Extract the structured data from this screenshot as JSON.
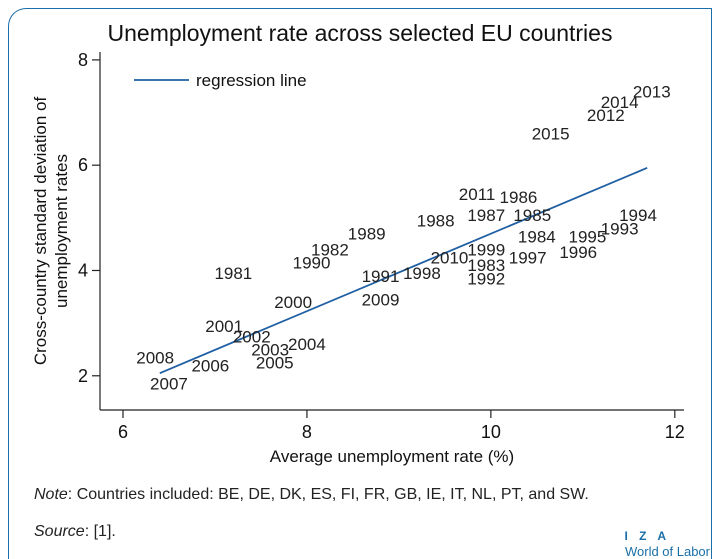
{
  "chart_data": {
    "type": "scatter",
    "title": "Unemployment rate across selected EU countries",
    "xlabel": "Average unemployment rate (%)",
    "ylabel_line1": "Cross-country standard deviation of",
    "ylabel_line2": "unemployment rates",
    "xlim": [
      5.75,
      12.1
    ],
    "ylim": [
      1.35,
      8.15
    ],
    "xticks": [
      "6",
      "8",
      "10",
      "12"
    ],
    "yticks": [
      "2",
      "4",
      "6",
      "8"
    ],
    "legend": {
      "label": "regression line",
      "position": "top-left"
    },
    "line_color": "#1f5fa3",
    "regression": {
      "x": [
        6.4,
        11.7
      ],
      "y": [
        2.05,
        5.95
      ]
    },
    "points": [
      {
        "label": "2013",
        "x": 11.75,
        "y": 7.4
      },
      {
        "label": "2014",
        "x": 11.4,
        "y": 7.2
      },
      {
        "label": "2012",
        "x": 11.25,
        "y": 6.95
      },
      {
        "label": "2015",
        "x": 10.65,
        "y": 6.6
      },
      {
        "label": "2011",
        "x": 9.85,
        "y": 5.45
      },
      {
        "label": "1986",
        "x": 10.3,
        "y": 5.4
      },
      {
        "label": "1988",
        "x": 9.4,
        "y": 4.95
      },
      {
        "label": "1987",
        "x": 9.95,
        "y": 5.05
      },
      {
        "label": "1985",
        "x": 10.45,
        "y": 5.05
      },
      {
        "label": "1994",
        "x": 11.6,
        "y": 5.05
      },
      {
        "label": "1993",
        "x": 11.4,
        "y": 4.8
      },
      {
        "label": "1989",
        "x": 8.65,
        "y": 4.7
      },
      {
        "label": "1984",
        "x": 10.5,
        "y": 4.65
      },
      {
        "label": "1995",
        "x": 11.05,
        "y": 4.65
      },
      {
        "label": "1982",
        "x": 8.25,
        "y": 4.4
      },
      {
        "label": "1999",
        "x": 9.95,
        "y": 4.4
      },
      {
        "label": "1990",
        "x": 8.05,
        "y": 4.15
      },
      {
        "label": "2010",
        "x": 9.55,
        "y": 4.25
      },
      {
        "label": "1997",
        "x": 10.4,
        "y": 4.25
      },
      {
        "label": "1996",
        "x": 10.95,
        "y": 4.35
      },
      {
        "label": "1983",
        "x": 9.95,
        "y": 4.1
      },
      {
        "label": "1981",
        "x": 7.2,
        "y": 3.95
      },
      {
        "label": "1991",
        "x": 8.8,
        "y": 3.9
      },
      {
        "label": "1998",
        "x": 9.25,
        "y": 3.95
      },
      {
        "label": "1992",
        "x": 9.95,
        "y": 3.85
      },
      {
        "label": "2000",
        "x": 7.85,
        "y": 3.4
      },
      {
        "label": "2009",
        "x": 8.8,
        "y": 3.45
      },
      {
        "label": "2001",
        "x": 7.1,
        "y": 2.95
      },
      {
        "label": "2002",
        "x": 7.4,
        "y": 2.75
      },
      {
        "label": "2004",
        "x": 8.0,
        "y": 2.6
      },
      {
        "label": "2003",
        "x": 7.6,
        "y": 2.5
      },
      {
        "label": "2008",
        "x": 6.35,
        "y": 2.35
      },
      {
        "label": "2006",
        "x": 6.95,
        "y": 2.2
      },
      {
        "label": "2005",
        "x": 7.65,
        "y": 2.25
      },
      {
        "label": "2007",
        "x": 6.5,
        "y": 1.85
      }
    ]
  },
  "footer": {
    "note_label": "Note",
    "note_text": ": Countries included: BE, DE, DK, ES, FI, FR, GB, IE, IT, NL, PT, and SW.",
    "source_label": "Source",
    "source_text": ": [1].",
    "logo_top": "I Z A",
    "logo_bottom": "World of Labor"
  }
}
